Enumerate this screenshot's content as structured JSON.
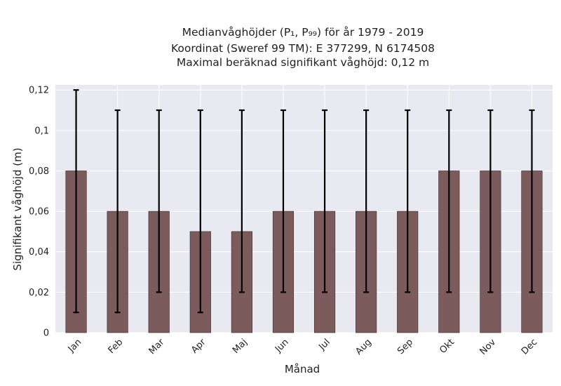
{
  "chart_data": {
    "type": "bar",
    "title_lines": [
      "Medianvåghöjder (P₁, P₉₉) för år 1979 - 2019",
      "Koordinat (Sweref 99 TM): E 377299, N 6174508",
      "Maximal beräknad signifikant våghöjd: 0,12 m"
    ],
    "xlabel": "Månad",
    "ylabel": "Signifikant våghöjd (m)",
    "categories": [
      "Jan",
      "Feb",
      "Mar",
      "Apr",
      "Maj",
      "Jun",
      "Jul",
      "Aug",
      "Sep",
      "Okt",
      "Nov",
      "Dec"
    ],
    "values": [
      0.08,
      0.06,
      0.06,
      0.05,
      0.05,
      0.06,
      0.06,
      0.06,
      0.06,
      0.08,
      0.08,
      0.08
    ],
    "error_low": [
      0.01,
      0.01,
      0.02,
      0.01,
      0.02,
      0.02,
      0.02,
      0.02,
      0.02,
      0.02,
      0.02,
      0.02
    ],
    "error_high": [
      0.12,
      0.11,
      0.11,
      0.11,
      0.11,
      0.11,
      0.11,
      0.11,
      0.11,
      0.11,
      0.11,
      0.11
    ],
    "ylim": [
      0,
      0.1225
    ],
    "yticks": [
      0,
      0.02,
      0.04,
      0.06,
      0.08,
      0.1,
      0.12
    ],
    "ytick_labels": [
      "0",
      "0,02",
      "0,04",
      "0,06",
      "0,08",
      "0,1",
      "0,12"
    ],
    "grid": true,
    "colors": {
      "bar": "#7b5b5b",
      "bar_edge": "#3a2a2a",
      "error_bar": "#000000",
      "plot_background": "#e9e9f1",
      "grid": "#ffffff"
    }
  }
}
